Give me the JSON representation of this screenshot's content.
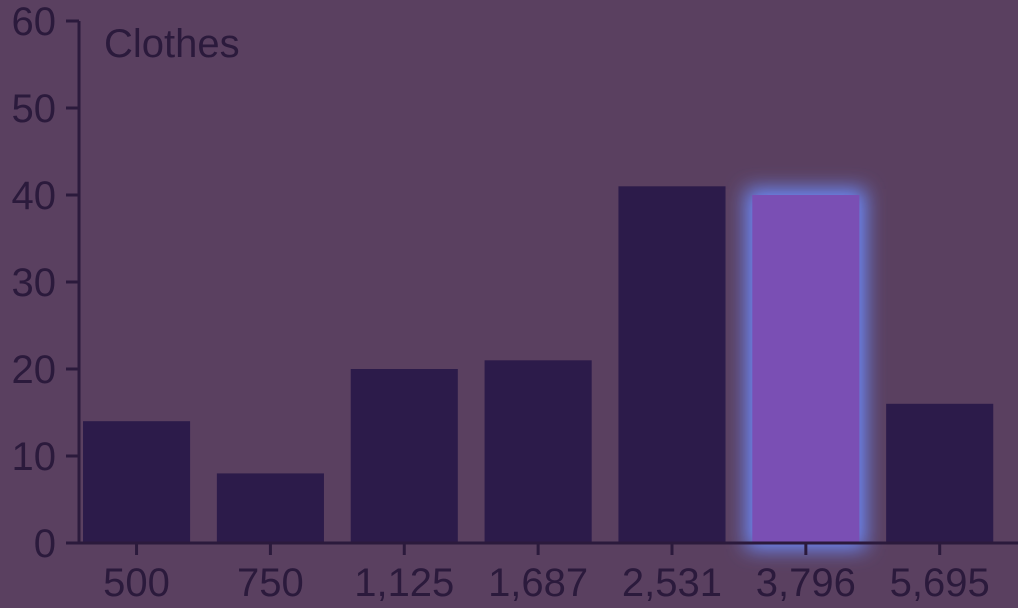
{
  "chart_data": {
    "type": "bar",
    "title": "Clothes",
    "categories": [
      "500",
      "750",
      "1,125",
      "1,687",
      "2,531",
      "3,796",
      "5,695"
    ],
    "values": [
      14,
      8,
      20,
      21,
      41,
      40,
      16
    ],
    "highlighted_index": 5,
    "ylim": [
      0,
      60
    ],
    "yticks": [
      0,
      10,
      20,
      30,
      40,
      50,
      60
    ],
    "grid": false,
    "colors": {
      "background": "#5a4060",
      "bar": "#2c1b4a",
      "highlight_bar": "#7a4fb4",
      "highlight_glow": "#6d8cff",
      "axis": "#2b1a3c",
      "text": "#2b1a3c"
    }
  }
}
